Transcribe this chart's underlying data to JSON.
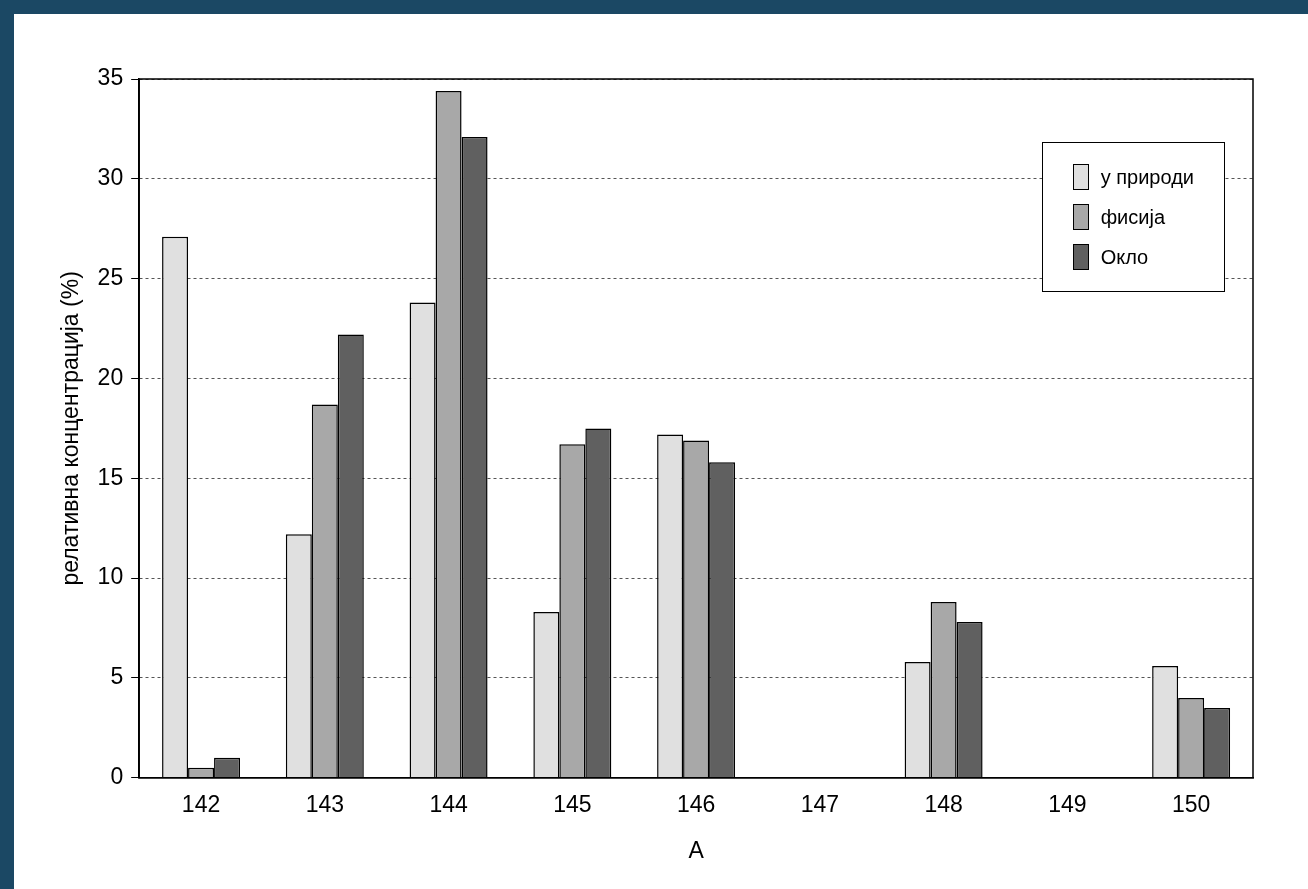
{
  "chart_data": {
    "type": "bar",
    "xlabel": "A",
    "ylabel": "релативна концентрација (%)",
    "categories": [
      "142",
      "143",
      "144",
      "145",
      "146",
      "147",
      "148",
      "149",
      "150"
    ],
    "series": [
      {
        "name": "у природи",
        "color": "#e0e0e0",
        "values": [
          27.1,
          12.2,
          23.8,
          8.3,
          17.2,
          null,
          5.8,
          null,
          5.6
        ]
      },
      {
        "name": "фисија",
        "color": "#a8a8a8",
        "values": [
          0.5,
          18.7,
          34.4,
          16.7,
          16.9,
          null,
          8.8,
          null,
          4.0
        ]
      },
      {
        "name": "Окло",
        "color": "#606060",
        "values": [
          1.0,
          22.2,
          32.1,
          17.5,
          15.8,
          null,
          7.8,
          null,
          3.5
        ]
      }
    ],
    "ylim": [
      0,
      35
    ],
    "yticks": [
      0,
      5,
      10,
      15,
      20,
      25,
      30,
      35
    ],
    "grid": "y",
    "legend": "top right"
  }
}
